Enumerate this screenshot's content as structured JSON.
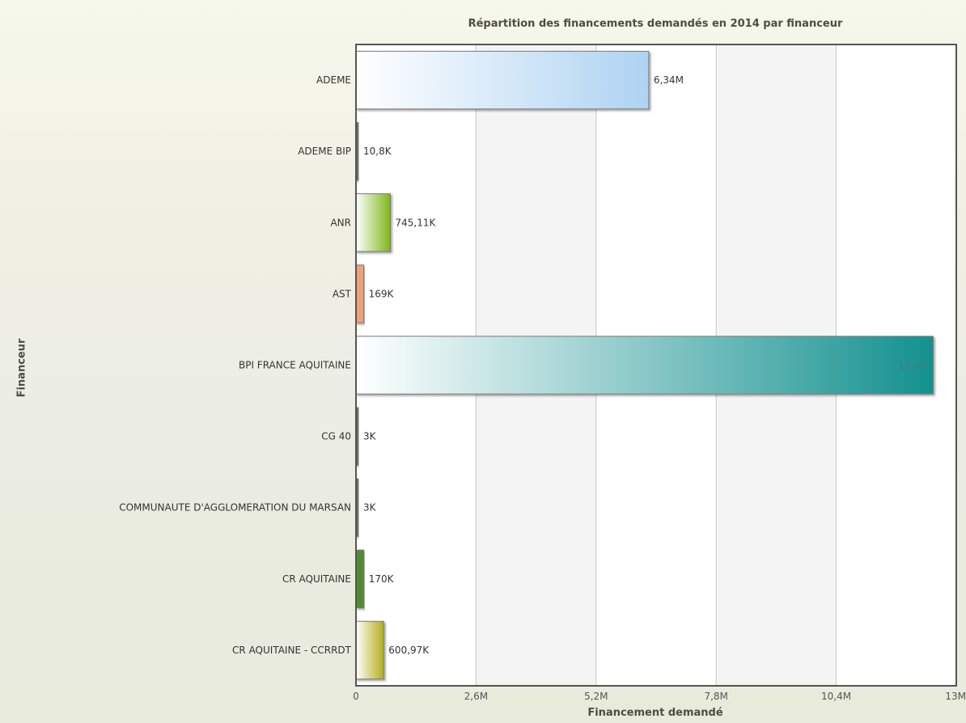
{
  "chart_data": {
    "type": "bar",
    "orientation": "horizontal",
    "title": "Répartition des financements demandés en 2014 par financeur",
    "xlabel": "Financement demandé",
    "ylabel": "Financeur",
    "categories": [
      "ADEME",
      "ADEME BIP",
      "ANR",
      "AST",
      "BPI FRANCE AQUITAINE",
      "CG 40",
      "COMMUNAUTE D'AGGLOMERATION DU MARSAN",
      "CR AQUITAINE",
      "CR AQUITAINE - CCRRDT"
    ],
    "values": [
      6340000,
      10800,
      745110,
      169000,
      12500000,
      3000,
      3000,
      170000,
      600970
    ],
    "value_labels": [
      "6,34M",
      "10,8K",
      "745,11K",
      "169K",
      "12,5M",
      "3K",
      "3K",
      "170K",
      "600,97K"
    ],
    "xlim": [
      0,
      13000000
    ],
    "x_ticks": [
      0,
      2600000,
      5200000,
      7800000,
      10400000,
      13000000
    ],
    "x_tick_labels": [
      "0",
      "2,6M",
      "5,2M",
      "7,8M",
      "10,4M",
      "13M"
    ],
    "grid": true,
    "legend": "none",
    "bar_colors": [
      "#aed3f2",
      "#6b6b6b",
      "#7fb51a",
      "#f0a07a",
      "#14918f",
      "#6b6b6b",
      "#6b6b6b",
      "#4f8c2e",
      "#b3ae1a"
    ]
  }
}
